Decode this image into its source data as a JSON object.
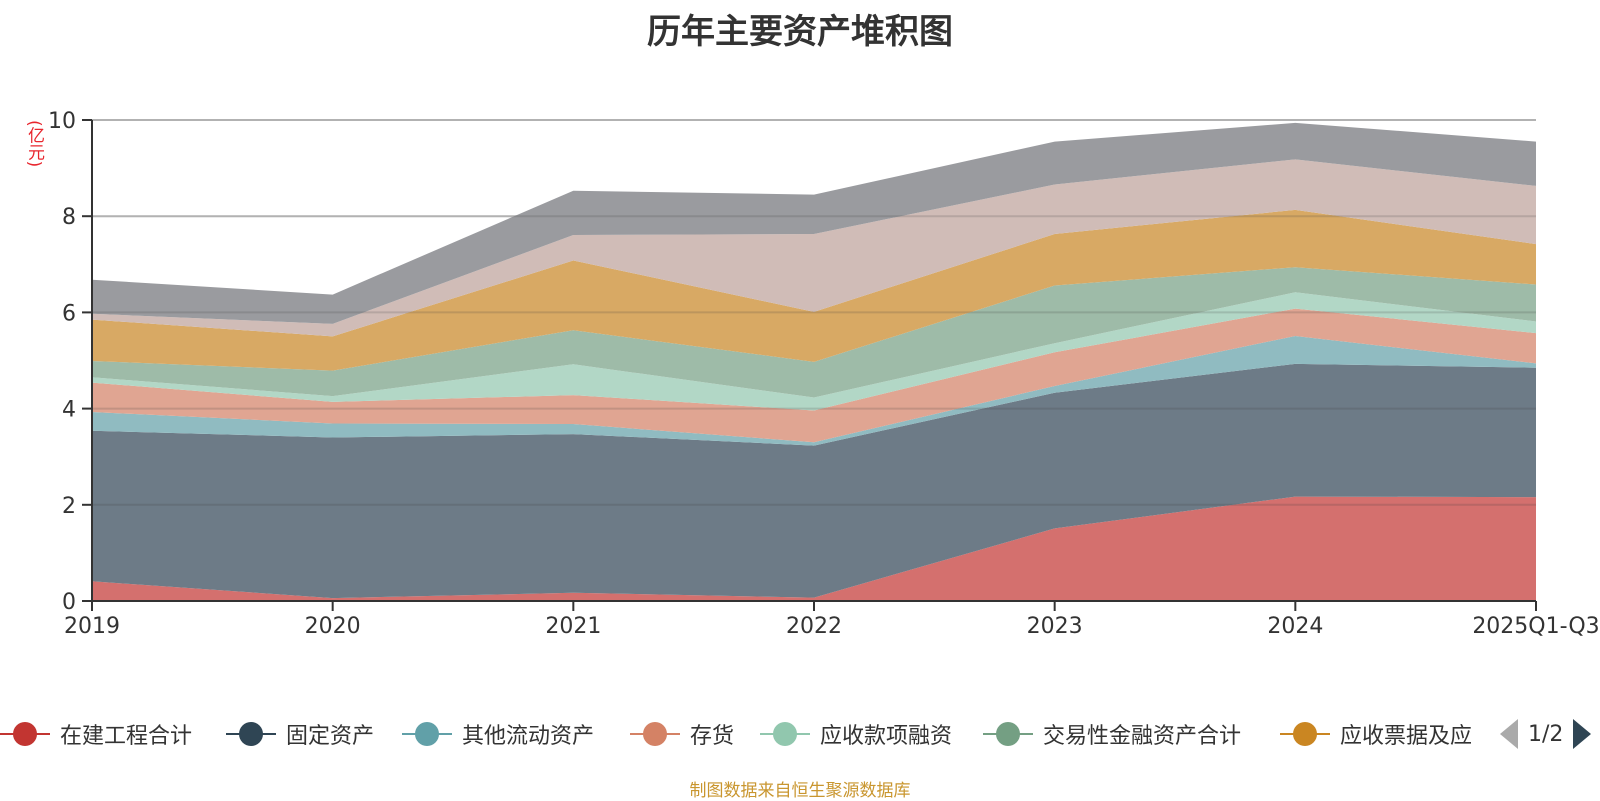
{
  "title": "历年主要资产堆积图",
  "unit_label": "(亿元)",
  "source": "制图数据来自恒生聚源数据库",
  "legend_pager": {
    "text": "1/2"
  },
  "chart_data": {
    "type": "area",
    "stacked": true,
    "title": "历年主要资产堆积图",
    "xlabel": "",
    "ylabel": "(亿元)",
    "ylim": [
      0,
      10
    ],
    "yticks": [
      0,
      2,
      4,
      6,
      8,
      10
    ],
    "grid": true,
    "legend_position": "bottom",
    "categories": [
      "2019",
      "2020",
      "2021",
      "2022",
      "2023",
      "2024",
      "2025Q1-Q3"
    ],
    "series": [
      {
        "name": "在建工程合计",
        "color": "#c23531",
        "fill": "#d4706e",
        "in_legend": true,
        "values": [
          0.41,
          0.06,
          0.17,
          0.07,
          1.51,
          2.17,
          2.16
        ]
      },
      {
        "name": "固定资产",
        "color": "#2f4554",
        "fill": "#6d7b87",
        "in_legend": true,
        "values": [
          3.13,
          3.34,
          3.3,
          3.16,
          2.82,
          2.76,
          2.69
        ]
      },
      {
        "name": "其他流动资产",
        "color": "#61a0a8",
        "fill": "#90bbc1",
        "in_legend": true,
        "values": [
          0.39,
          0.29,
          0.21,
          0.07,
          0.14,
          0.58,
          0.09
        ]
      },
      {
        "name": "存货",
        "color": "#d48265",
        "fill": "#e0a592",
        "in_legend": true,
        "values": [
          0.61,
          0.45,
          0.6,
          0.66,
          0.7,
          0.57,
          0.63
        ]
      },
      {
        "name": "应收款项融资",
        "color": "#91c7ae",
        "fill": "#b2d7c6",
        "in_legend": true,
        "values": [
          0.11,
          0.12,
          0.64,
          0.27,
          0.19,
          0.34,
          0.24
        ]
      },
      {
        "name": "交易性金融资产合计",
        "color": "#749f83",
        "fill": "#9ebba8",
        "in_legend": true,
        "values": [
          0.34,
          0.53,
          0.71,
          0.74,
          1.2,
          0.52,
          0.77
        ]
      },
      {
        "name": "应收票据及应",
        "color": "#ca8622",
        "fill": "#d8a964",
        "in_legend": true,
        "values": [
          0.86,
          0.71,
          1.45,
          1.04,
          1.07,
          1.19,
          0.84
        ]
      },
      {
        "name": "",
        "color": "#bda29a",
        "fill": "#d0bcb7",
        "in_legend": false,
        "values": [
          0.12,
          0.26,
          0.53,
          1.62,
          1.03,
          1.05,
          1.21
        ]
      },
      {
        "name": "",
        "color": "#6e7074",
        "fill": "#9a9b9f",
        "in_legend": false,
        "values": [
          0.71,
          0.61,
          0.92,
          0.82,
          0.89,
          0.76,
          0.92
        ]
      }
    ]
  }
}
